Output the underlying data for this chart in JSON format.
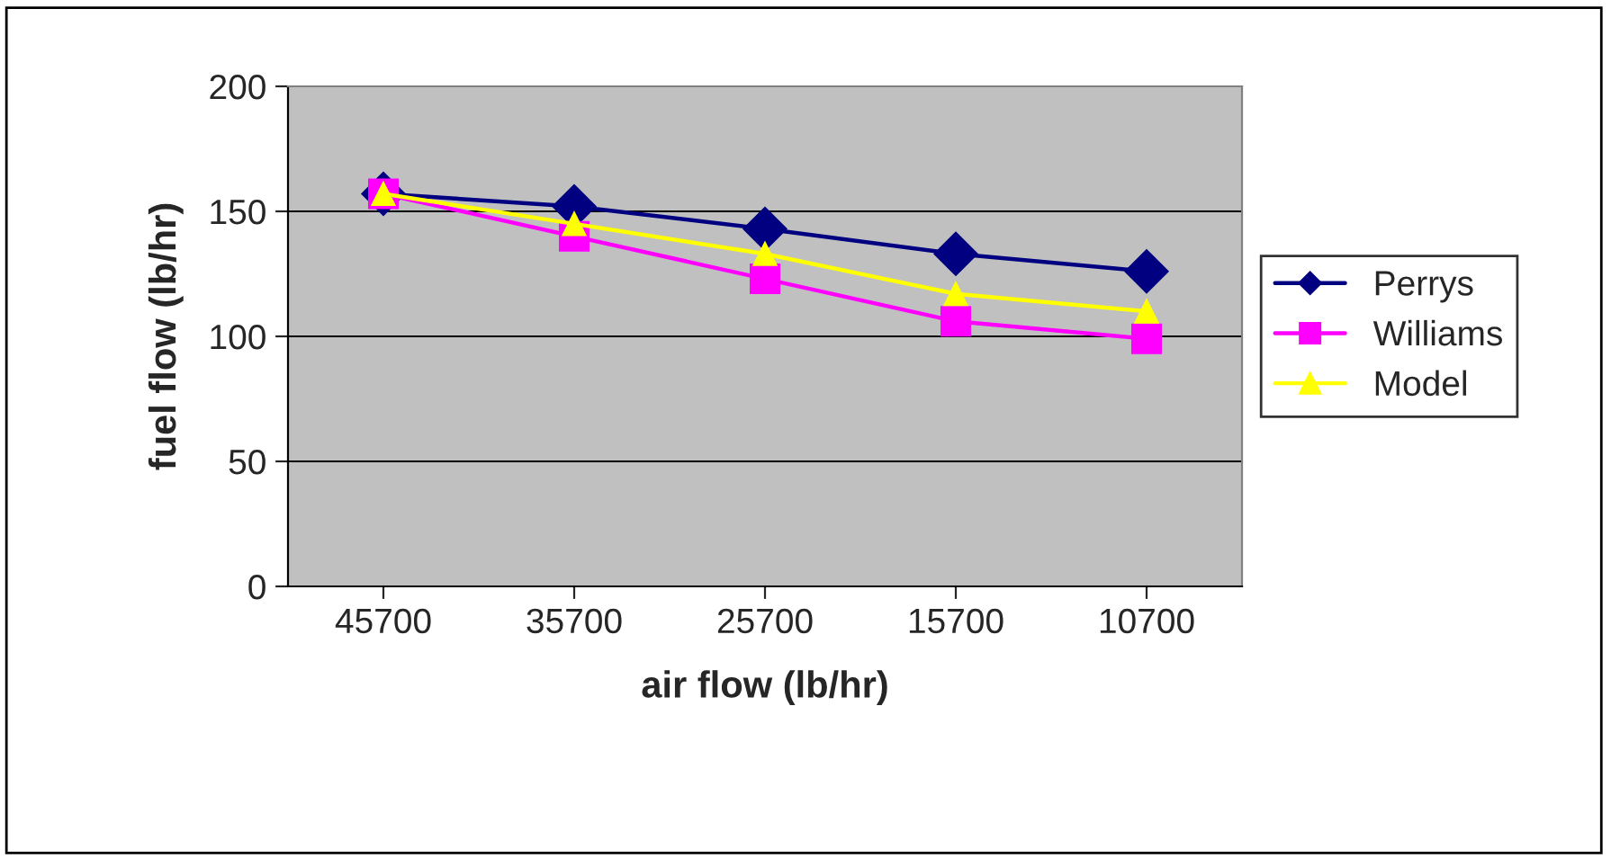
{
  "chart_data": {
    "type": "line",
    "xlabel": "air flow (lb/hr)",
    "ylabel": "fuel flow (lb/hr)",
    "categories": [
      "45700",
      "35700",
      "25700",
      "15700",
      "10700"
    ],
    "series": [
      {
        "name": "Perrys",
        "color": "#000080",
        "marker": "diamond",
        "values": [
          157,
          152,
          143,
          133,
          126
        ]
      },
      {
        "name": "Williams",
        "color": "#ff00ff",
        "marker": "square",
        "values": [
          157,
          140,
          123,
          106,
          99
        ]
      },
      {
        "name": "Model",
        "color": "#ffff00",
        "marker": "triangle",
        "values": [
          157,
          145,
          133,
          117,
          110
        ]
      }
    ],
    "ylim": [
      0,
      200
    ],
    "yticks": [
      0,
      50,
      100,
      150,
      200
    ],
    "grid": "y",
    "legend": "right",
    "line_style": "solid"
  }
}
